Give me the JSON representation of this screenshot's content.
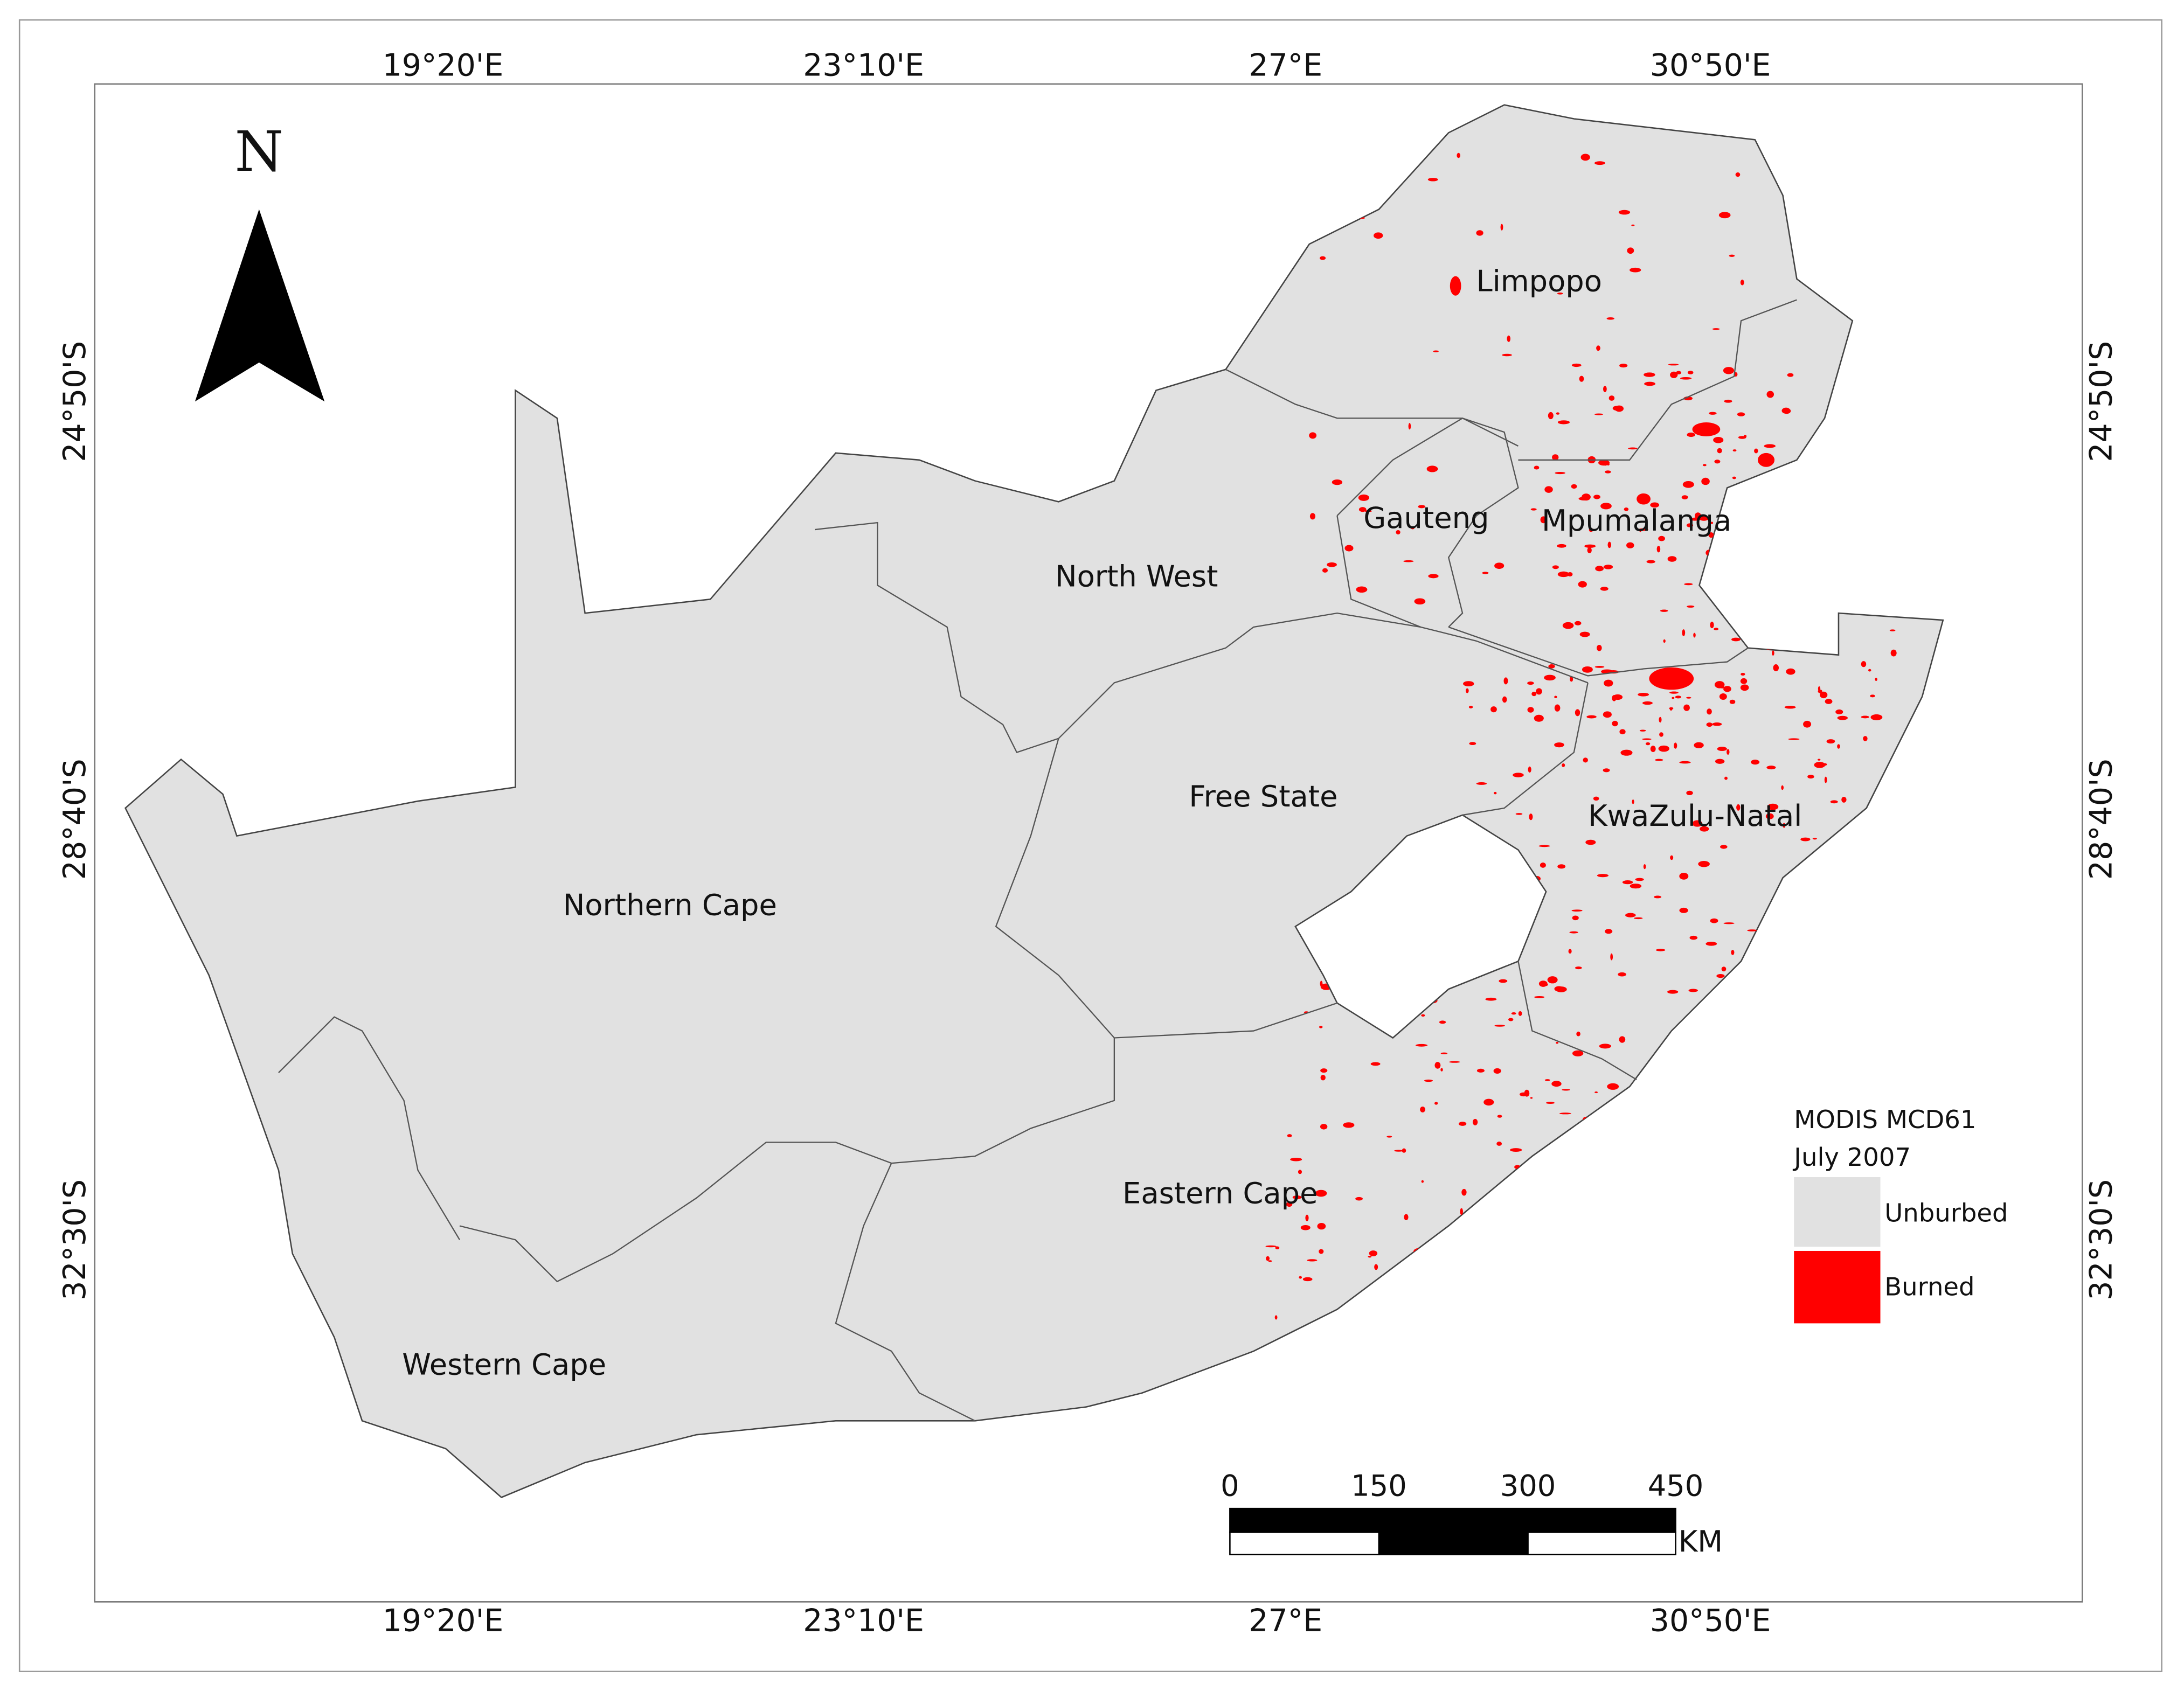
{
  "map": {
    "north_label": "N",
    "graticule": {
      "top": [
        "19°20'E",
        "23°10'E",
        "27°E",
        "30°50'E"
      ],
      "bottom": [
        "19°20'E",
        "23°10'E",
        "27°E",
        "30°50'E"
      ],
      "left": [
        "24°50'S",
        "28°40'S",
        "32°30'S"
      ],
      "right": [
        "24°50'S",
        "28°40'S",
        "32°30'S"
      ]
    },
    "provinces": [
      "Limpopo",
      "Gauteng",
      "Mpumalanga",
      "North West",
      "Free State",
      "KwaZulu-Natal",
      "Northern Cape",
      "Eastern Cape",
      "Western Cape"
    ],
    "legend": {
      "title": [
        "MODIS MCD61",
        "July 2007"
      ],
      "items": [
        "Unburbed",
        "Burned"
      ]
    },
    "scale_bar": {
      "ticks": [
        "0",
        "150",
        "300",
        "450"
      ],
      "unit": "KM"
    }
  }
}
